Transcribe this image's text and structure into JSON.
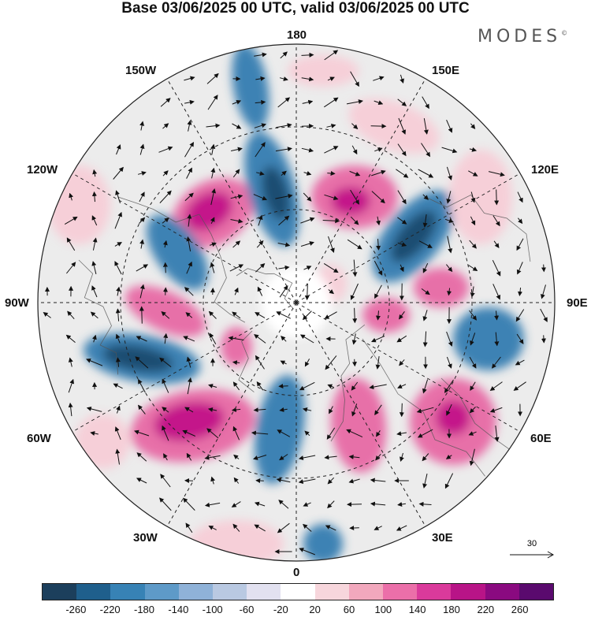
{
  "title": "Base 03/06/2025 00 UTC, valid 03/06/2025 00 UTC",
  "brand": "MODES",
  "brand_mark": "©",
  "map": {
    "projection": "north-polar-stereographic",
    "longitude_labels": {
      "top": "180",
      "top_left": "150W",
      "top_right": "150E",
      "upper_left": "120W",
      "upper_right": "120E",
      "left": "90W",
      "right": "90E",
      "lower_left": "60W",
      "lower_right": "60E",
      "bottom_left": "30W",
      "bottom_right": "30E",
      "bottom": "0"
    },
    "reference_vector": "30",
    "anomaly_colors": {
      "negative_strong": "#1f4e72",
      "negative": "#3d82b4",
      "negative_light": "#c9d3e6",
      "neutral": "#ececec",
      "positive_light": "#f6cfd8",
      "positive": "#e76fa8",
      "positive_strong": "#c4168a"
    }
  },
  "colorbar": {
    "ticks": [
      "-260",
      "-220",
      "-180",
      "-140",
      "-100",
      "-60",
      "-20",
      "20",
      "60",
      "100",
      "140",
      "180",
      "220",
      "260"
    ],
    "colors": [
      "#1c3f5c",
      "#1f5f8c",
      "#3782b5",
      "#5e9ac8",
      "#8fb2d8",
      "#b9c9e2",
      "#e2e1f0",
      "#ffffff",
      "#f7d6dc",
      "#f2a8bd",
      "#eb6fa9",
      "#da3a9b",
      "#b81487",
      "#8a0a80",
      "#5a0a6e"
    ]
  }
}
